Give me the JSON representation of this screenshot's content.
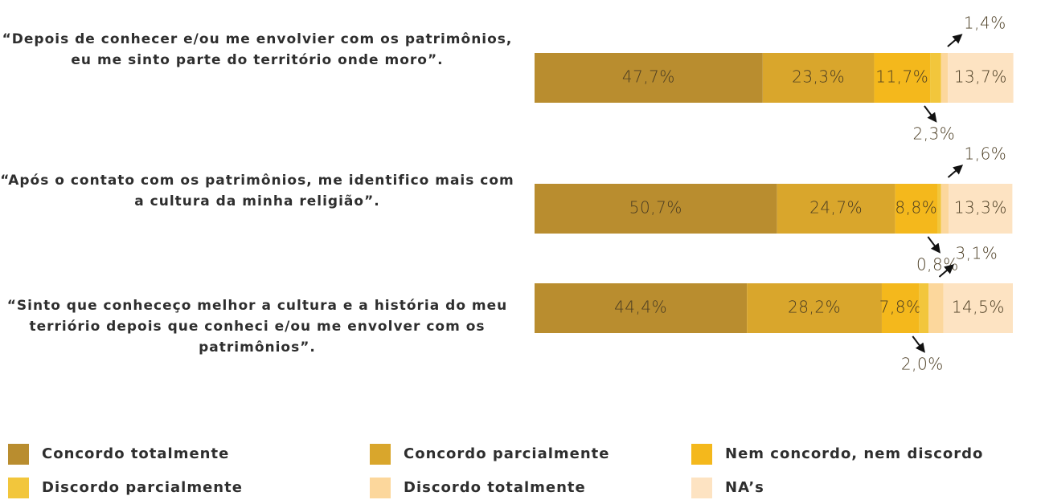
{
  "chart_data": {
    "type": "bar",
    "orientation": "horizontal",
    "stacked": true,
    "categories": [
      "“Depois de conhecer e/ou me envolvier com os patrimônios, eu me sinto parte do território onde moro”.",
      "“Após o contato com os patrimônios,  me identifico mais com a cultura da minha religião”.",
      "“Sinto que conheceço melhor a cultura e a história do meu terriório depois que conheci e/ou me envolver com os patrimônios”."
    ],
    "xlim": [
      0,
      100
    ],
    "legend": "bottom",
    "series": [
      {
        "name": "Concordo totalmente",
        "color": "#b98d2f",
        "values": [
          47.7,
          50.7,
          44.4
        ],
        "value_labels": [
          "47,7%",
          "50,7%",
          "44,4%"
        ]
      },
      {
        "name": "Concordo parcialmente",
        "color": "#d9a62c",
        "values": [
          23.3,
          24.7,
          28.2
        ],
        "value_labels": [
          "23,3%",
          "24,7%",
          "28,2%"
        ]
      },
      {
        "name": "Nem concordo, nem discordo",
        "color": "#f4b81c",
        "values": [
          11.7,
          8.8,
          7.8
        ],
        "value_labels": [
          "11,7%",
          "8,8%",
          "7,8%"
        ]
      },
      {
        "name": "Discordo parcialmente",
        "color": "#f2c63c",
        "values": [
          2.3,
          0.8,
          2.0
        ],
        "value_labels": [
          "2,3%",
          "0,8%",
          "2,0%"
        ]
      },
      {
        "name": "Discordo totalmente",
        "color": "#fcd79c",
        "values": [
          1.4,
          1.6,
          3.1
        ],
        "value_labels": [
          "1,4%",
          "1,6%",
          "3,1%"
        ]
      },
      {
        "name": "NA’s",
        "color": "#fde3c2",
        "values": [
          13.7,
          13.3,
          14.5
        ],
        "value_labels": [
          "13,7%",
          "13,3%",
          "14,5%"
        ]
      }
    ]
  }
}
